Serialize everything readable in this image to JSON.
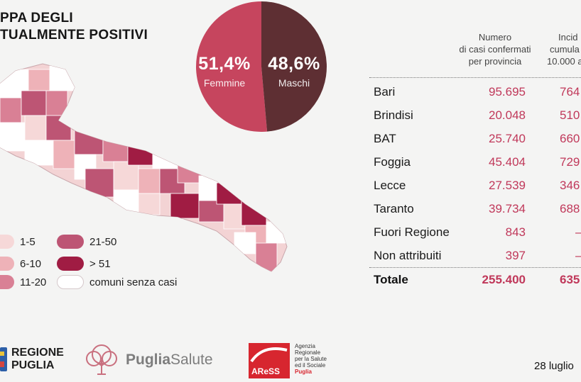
{
  "title": {
    "line1": "PPA DEGLI",
    "line2": "TUALMENTE POSITIVI"
  },
  "pie": {
    "female": {
      "value": 51.4,
      "pct_label": "51,4%",
      "label": "Femmine",
      "color": "#c6455e"
    },
    "male": {
      "value": 48.6,
      "pct_label": "48,6%",
      "label": "Maschi",
      "color": "#5e2f33"
    }
  },
  "legend": [
    {
      "label": "1-5",
      "color": "#f6d8d8"
    },
    {
      "label": "6-10",
      "color": "#eeb2b8"
    },
    {
      "label": "11-20",
      "color": "#d98095"
    },
    {
      "label": "21-50",
      "color": "#bd5574"
    },
    {
      "label": "> 51",
      "color": "#a01c43"
    },
    {
      "label": "comuni senza casi",
      "color": "#ffffff"
    }
  ],
  "table": {
    "header_cases": [
      "Numero",
      "di casi confermati",
      "per provincia"
    ],
    "header_incidence": [
      "Incid",
      "cumula",
      "10.000 a"
    ],
    "rows": [
      {
        "name": "Bari",
        "cases": "95.695",
        "incidence": "764"
      },
      {
        "name": "Brindisi",
        "cases": "20.048",
        "incidence": "510"
      },
      {
        "name": "BAT",
        "cases": "25.740",
        "incidence": "660"
      },
      {
        "name": "Foggia",
        "cases": "45.404",
        "incidence": "729"
      },
      {
        "name": "Lecce",
        "cases": "27.539",
        "incidence": "346"
      },
      {
        "name": "Taranto",
        "cases": "39.734",
        "incidence": "688"
      },
      {
        "name": "Fuori Regione",
        "cases": "843",
        "incidence": "–"
      },
      {
        "name": "Non attribuiti",
        "cases": "397",
        "incidence": "–"
      }
    ],
    "total": {
      "name": "Totale",
      "cases": "255.400",
      "incidence": "635"
    }
  },
  "footer": {
    "regione": [
      "REGIONE",
      "PUGLIA"
    ],
    "puglia_salute": {
      "a": "Puglia",
      "b": "Salute"
    },
    "aress": {
      "logo": "AReSS",
      "desc": [
        "Agenzia",
        "Regionale",
        "per la Salute",
        "ed il Sociale"
      ],
      "region": "Puglia"
    },
    "date": "28 luglio"
  }
}
